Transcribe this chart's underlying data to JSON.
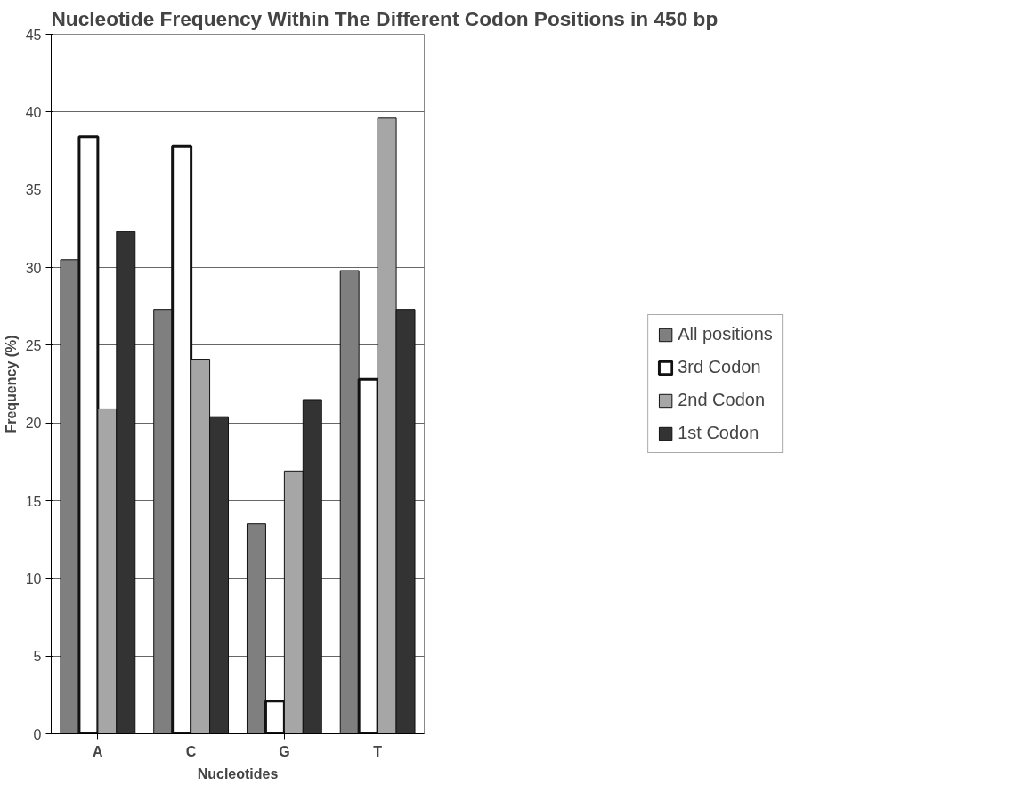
{
  "chart_data": {
    "type": "bar",
    "title": "Nucleotide Frequency Within The Different Codon Positions in 450 bp",
    "xlabel": "Nucleotides",
    "ylabel": "Frequency (%)",
    "categories": [
      "A",
      "C",
      "G",
      "T"
    ],
    "series": [
      {
        "name": "All positions",
        "color": "#7f7f7f",
        "values": [
          30.5,
          27.3,
          13.5,
          29.8
        ]
      },
      {
        "name": "3rd Codon",
        "color": "#ffffff",
        "values": [
          38.4,
          37.8,
          2.1,
          22.8
        ]
      },
      {
        "name": "2nd Codon",
        "color": "#a6a6a6",
        "values": [
          20.9,
          24.1,
          16.9,
          39.6
        ]
      },
      {
        "name": "1st Codon",
        "color": "#333333",
        "values": [
          32.3,
          20.4,
          21.5,
          27.3
        ]
      }
    ],
    "ylim": [
      0,
      45
    ],
    "yticks": [
      0,
      5,
      10,
      15,
      20,
      25,
      30,
      35,
      40,
      45
    ],
    "grid": "y",
    "legend": "right"
  }
}
